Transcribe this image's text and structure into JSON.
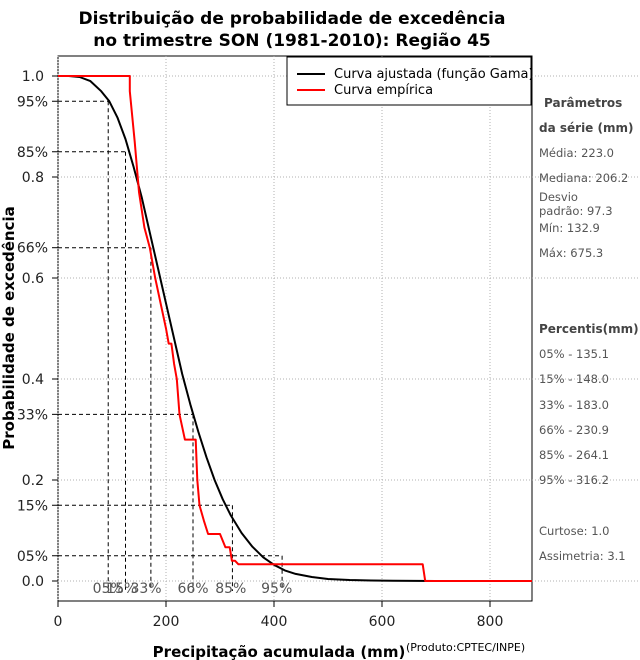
{
  "chart_data": {
    "type": "line",
    "title": [
      "Distribuição de probabilidade de excedência",
      "no trimestre SON (1981-2010): Região 45"
    ],
    "xlabel": "Precipitação acumulada (mm)",
    "ylabel": "Probabilidade de excedência",
    "credit": "(Produto:CPTEC/INPE)",
    "xlim": [
      0,
      880
    ],
    "ylim": [
      -0.04,
      1.05
    ],
    "x_ticks": [
      0,
      200,
      400,
      600,
      800
    ],
    "y_ticks": [
      0.0,
      0.2,
      0.4,
      0.6,
      0.8,
      1.0
    ],
    "y_tick_labels": [
      "0.0",
      "0.2",
      "0.4",
      "0.6",
      "0.8",
      "1.0"
    ],
    "y_percent_marks": [
      {
        "label": "95%",
        "y": 0.95
      },
      {
        "label": "85%",
        "y": 0.85
      },
      {
        "label": "66%",
        "y": 0.66
      },
      {
        "label": "33%",
        "y": 0.33
      },
      {
        "label": "15%",
        "y": 0.15
      },
      {
        "label": "05%",
        "y": 0.05
      }
    ],
    "legend": [
      {
        "name": "Curva ajustada (função Gama)",
        "color": "#000000"
      },
      {
        "name": "Curva empírica",
        "color": "#ff0000"
      }
    ],
    "series": [
      {
        "name": "Curva ajustada (função Gama)",
        "color": "#000000",
        "x": [
          0,
          20,
          40,
          60,
          80,
          95,
          110,
          125,
          140,
          155,
          170,
          185,
          200,
          215,
          230,
          245,
          260,
          275,
          290,
          305,
          320,
          340,
          360,
          380,
          400,
          420,
          440,
          470,
          500,
          540,
          580,
          620,
          660,
          700
        ],
        "y": [
          1.0,
          1.0,
          0.998,
          0.99,
          0.97,
          0.95,
          0.918,
          0.875,
          0.82,
          0.76,
          0.69,
          0.62,
          0.55,
          0.48,
          0.41,
          0.35,
          0.295,
          0.245,
          0.2,
          0.162,
          0.13,
          0.095,
          0.068,
          0.047,
          0.032,
          0.021,
          0.014,
          0.008,
          0.004,
          0.002,
          0.001,
          0.0005,
          0.0002,
          0.0
        ]
      },
      {
        "name": "Curva empírica",
        "color": "#ff0000",
        "x": [
          0,
          132.9,
          132.9,
          142,
          150,
          150,
          160,
          170,
          180,
          190,
          200,
          205,
          210,
          215,
          220,
          225,
          235,
          245,
          255,
          258,
          262,
          270,
          278,
          290,
          300,
          310,
          318,
          322,
          328,
          334,
          334,
          675.3,
          680,
          880
        ],
        "y": [
          1.0,
          1.0,
          0.97,
          0.87,
          0.77,
          0.77,
          0.7,
          0.66,
          0.6,
          0.55,
          0.5,
          0.47,
          0.47,
          0.43,
          0.4,
          0.33,
          0.28,
          0.28,
          0.28,
          0.2,
          0.15,
          0.12,
          0.093,
          0.093,
          0.093,
          0.067,
          0.067,
          0.04,
          0.04,
          0.033,
          0.033,
          0.033,
          0.0,
          0.0
        ]
      }
    ],
    "percentile_lines": [
      {
        "label": "05%",
        "p": 0.95,
        "x": 93
      },
      {
        "label": "15%",
        "p": 0.85,
        "x": 125
      },
      {
        "label": "33%",
        "p": 0.66,
        "x": 172
      },
      {
        "label": "66%",
        "p": 0.33,
        "x": 250
      },
      {
        "label": "85%",
        "p": 0.15,
        "x": 323
      },
      {
        "label": "95%",
        "p": 0.05,
        "x": 415
      }
    ],
    "percentile_text_x": [
      93,
      118,
      163,
      250,
      320,
      405
    ]
  },
  "sidebar": {
    "params_title_1": "Parâmetros",
    "params_title_2": "da série (mm)",
    "media": "Média: 223.0",
    "mediana": "Mediana: 206.2",
    "desvio_1": "Desvio",
    "desvio_2": "padrão: 97.3",
    "min": "Mín: 132.9",
    "max": "Máx: 675.3",
    "percentis_title": "Percentis(mm)",
    "p05": "05% - 135.1",
    "p15": "15% - 148.0",
    "p33": "33% - 183.0",
    "p66": "66% - 230.9",
    "p85": "85% - 264.1",
    "p95": "95% - 316.2",
    "curtose": "Curtose: 1.0",
    "assimetria": "Assimetria: 3.1"
  }
}
